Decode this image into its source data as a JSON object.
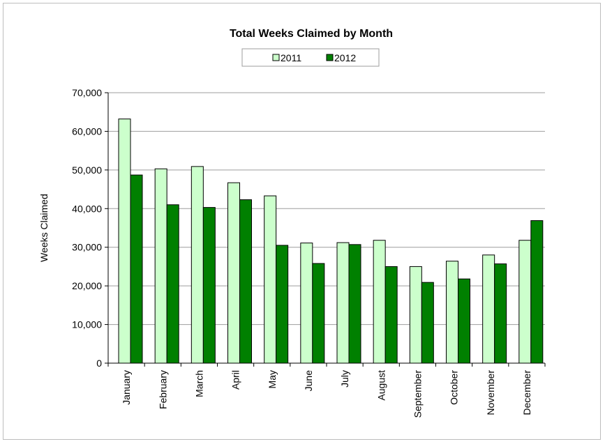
{
  "chart_data": {
    "type": "bar",
    "title": "Total Weeks Claimed by Month",
    "xlabel": "",
    "ylabel": "Weeks Claimed",
    "ylim": [
      0,
      70000
    ],
    "yticks": [
      "0",
      "10,000",
      "20,000",
      "30,000",
      "40,000",
      "50,000",
      "60,000",
      "70,000"
    ],
    "grid": true,
    "legend_position": "top-center",
    "categories": [
      "January",
      "February",
      "March",
      "April",
      "May",
      "June",
      "July",
      "August",
      "September",
      "October",
      "November",
      "December"
    ],
    "series": [
      {
        "name": "2011",
        "color": "#ccffcc",
        "values": [
          63200,
          50300,
          50900,
          46700,
          43300,
          31100,
          31200,
          31800,
          25000,
          26400,
          28000,
          31800
        ]
      },
      {
        "name": "2012",
        "color": "#008000",
        "values": [
          48700,
          41000,
          40300,
          42300,
          30500,
          25800,
          30700,
          25000,
          20900,
          21800,
          25700,
          36900
        ]
      }
    ]
  }
}
